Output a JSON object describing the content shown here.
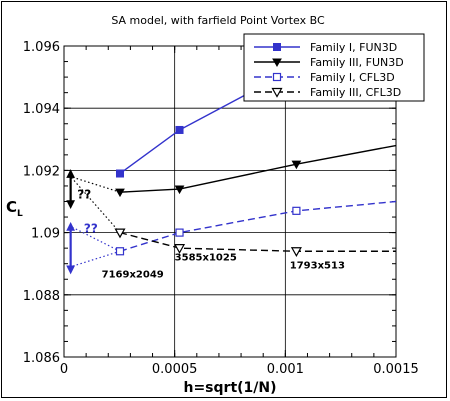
{
  "chart_data": {
    "type": "line",
    "title": "SA model, with farfield Point Vortex BC",
    "xlabel": "h=sqrt(1/N)",
    "ylabel_main": "C",
    "ylabel_sub": "L",
    "xlim": [
      0,
      0.0015
    ],
    "ylim": [
      1.086,
      1.096
    ],
    "xticks": [
      0,
      0.0005,
      0.001,
      0.0015
    ],
    "xtick_labels": [
      "0",
      "0.0005",
      "0.001",
      "0.0015"
    ],
    "yticks": [
      1.086,
      1.088,
      1.09,
      1.092,
      1.094,
      1.096
    ],
    "ytick_labels": [
      "1.086",
      "1.088",
      "1.09",
      "1.092",
      "1.094",
      "1.096"
    ],
    "grid": true,
    "legend_position": "top-right",
    "series": [
      {
        "name": "Family I, FUN3D",
        "color": "#3333cc",
        "dash": "solid",
        "marker": "filled-square",
        "x": [
          0.000253,
          0.000522,
          0.00105,
          0.0015
        ],
        "y": [
          1.0919,
          1.0933,
          1.0953,
          1.0965
        ]
      },
      {
        "name": "Family III, FUN3D",
        "color": "#000000",
        "dash": "solid",
        "marker": "filled-triangle-down",
        "x": [
          0.000253,
          0.000522,
          0.00105,
          0.0015
        ],
        "y": [
          1.0913,
          1.0914,
          1.0922,
          1.0928
        ]
      },
      {
        "name": "Family I, CFL3D",
        "color": "#3333cc",
        "dash": "dashed",
        "marker": "open-square",
        "x": [
          0.000253,
          0.000522,
          0.00105,
          0.0015
        ],
        "y": [
          1.0894,
          1.09,
          1.0907,
          1.091
        ]
      },
      {
        "name": "Family III, CFL3D",
        "color": "#000000",
        "dash": "dashed",
        "marker": "open-triangle-down",
        "x": [
          0.000253,
          0.000522,
          0.00105,
          0.0015
        ],
        "y": [
          1.09,
          1.0895,
          1.0894,
          1.0894
        ]
      }
    ],
    "extrapolation_lines": [
      {
        "color": "#000000",
        "from": [
          0.000253,
          1.0913
        ],
        "to": [
          3e-05,
          1.0918
        ]
      },
      {
        "color": "#000000",
        "from": [
          0.000253,
          1.09
        ],
        "to": [
          3e-05,
          1.0918
        ]
      },
      {
        "color": "#3333cc",
        "from": [
          0.000253,
          1.0894
        ],
        "to": [
          3e-05,
          1.0902
        ]
      },
      {
        "color": "#3333cc",
        "from": [
          0.000253,
          1.0894
        ],
        "to": [
          3e-05,
          1.0889
        ]
      }
    ],
    "uncertainty_arrows": [
      {
        "color": "#000000",
        "x": 3e-05,
        "y_from": 1.0909,
        "y_to": 1.0919
      },
      {
        "color": "#3333cc",
        "x": 3e-05,
        "y_from": 1.0888,
        "y_to": 1.0902
      }
    ],
    "annotations": [
      {
        "text": "??",
        "x": 6e-05,
        "y": 1.0911,
        "color": "#000000"
      },
      {
        "text": "??",
        "x": 9e-05,
        "y": 1.09,
        "color": "#3333cc"
      },
      {
        "text": "7169x2049",
        "x": 0.00017,
        "y": 1.08855
      },
      {
        "text": "3585x1025",
        "x": 0.0005,
        "y": 1.0891
      },
      {
        "text": "1793x513",
        "x": 0.00102,
        "y": 1.08885
      }
    ]
  }
}
